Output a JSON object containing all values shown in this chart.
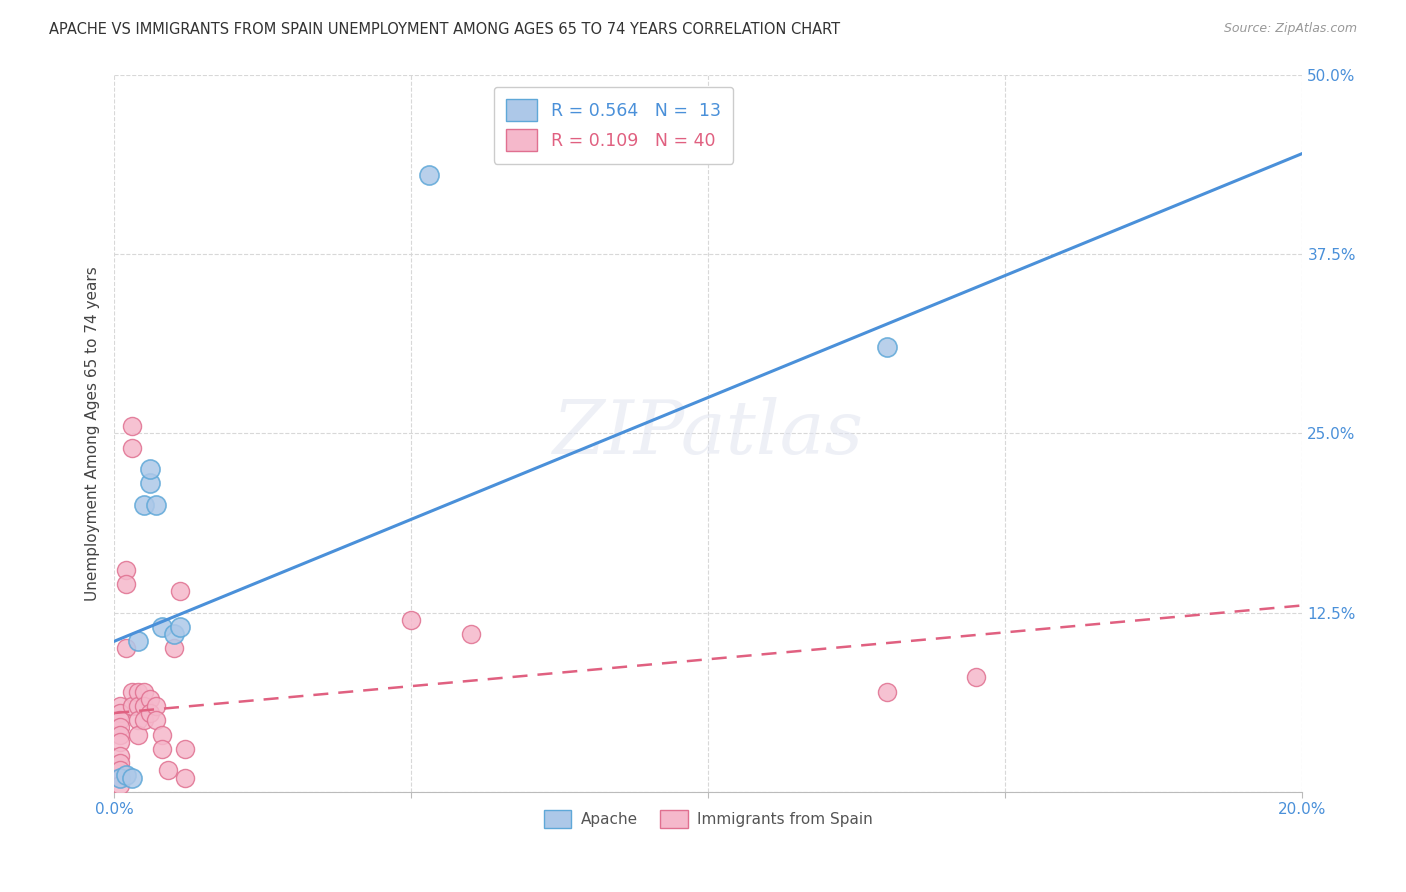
{
  "title": "APACHE VS IMMIGRANTS FROM SPAIN UNEMPLOYMENT AMONG AGES 65 TO 74 YEARS CORRELATION CHART",
  "source": "Source: ZipAtlas.com",
  "ylabel": "Unemployment Among Ages 65 to 74 years",
  "xlim": [
    0.0,
    0.2
  ],
  "ylim": [
    0.0,
    0.5
  ],
  "xticks": [
    0.0,
    0.05,
    0.1,
    0.15,
    0.2
  ],
  "xticklabels": [
    "0.0%",
    "",
    "",
    "",
    "20.0%"
  ],
  "yticks": [
    0.0,
    0.125,
    0.25,
    0.375,
    0.5
  ],
  "yticklabels": [
    "",
    "12.5%",
    "25.0%",
    "37.5%",
    "50.0%"
  ],
  "apache_R": "0.564",
  "apache_N": "13",
  "spain_R": "0.109",
  "spain_N": "40",
  "apache_color": "#adc8e8",
  "apache_edge": "#5fa8d8",
  "apache_line_color": "#4a90d9",
  "spain_color": "#f5b8cb",
  "spain_edge": "#e07090",
  "spain_line_color": "#e06080",
  "watermark": "ZIPatlas",
  "apache_line": [
    [
      0.0,
      0.105
    ],
    [
      0.2,
      0.445
    ]
  ],
  "spain_line": [
    [
      0.0,
      0.055
    ],
    [
      0.2,
      0.13
    ]
  ],
  "apache_points": [
    [
      0.001,
      0.01
    ],
    [
      0.002,
      0.012
    ],
    [
      0.003,
      0.01
    ],
    [
      0.004,
      0.105
    ],
    [
      0.005,
      0.2
    ],
    [
      0.006,
      0.215
    ],
    [
      0.006,
      0.225
    ],
    [
      0.007,
      0.2
    ],
    [
      0.008,
      0.115
    ],
    [
      0.01,
      0.11
    ],
    [
      0.011,
      0.115
    ],
    [
      0.053,
      0.43
    ],
    [
      0.13,
      0.31
    ]
  ],
  "spain_points": [
    [
      0.001,
      0.06
    ],
    [
      0.001,
      0.055
    ],
    [
      0.001,
      0.05
    ],
    [
      0.001,
      0.045
    ],
    [
      0.001,
      0.04
    ],
    [
      0.001,
      0.035
    ],
    [
      0.001,
      0.025
    ],
    [
      0.001,
      0.02
    ],
    [
      0.001,
      0.015
    ],
    [
      0.001,
      0.01
    ],
    [
      0.001,
      0.005
    ],
    [
      0.002,
      0.155
    ],
    [
      0.002,
      0.145
    ],
    [
      0.002,
      0.1
    ],
    [
      0.003,
      0.255
    ],
    [
      0.003,
      0.24
    ],
    [
      0.003,
      0.07
    ],
    [
      0.003,
      0.06
    ],
    [
      0.004,
      0.07
    ],
    [
      0.004,
      0.06
    ],
    [
      0.004,
      0.05
    ],
    [
      0.004,
      0.04
    ],
    [
      0.005,
      0.07
    ],
    [
      0.005,
      0.06
    ],
    [
      0.005,
      0.05
    ],
    [
      0.006,
      0.065
    ],
    [
      0.006,
      0.055
    ],
    [
      0.007,
      0.06
    ],
    [
      0.007,
      0.05
    ],
    [
      0.008,
      0.04
    ],
    [
      0.008,
      0.03
    ],
    [
      0.009,
      0.015
    ],
    [
      0.01,
      0.1
    ],
    [
      0.011,
      0.14
    ],
    [
      0.012,
      0.03
    ],
    [
      0.012,
      0.01
    ],
    [
      0.05,
      0.12
    ],
    [
      0.06,
      0.11
    ],
    [
      0.13,
      0.07
    ],
    [
      0.145,
      0.08
    ]
  ]
}
